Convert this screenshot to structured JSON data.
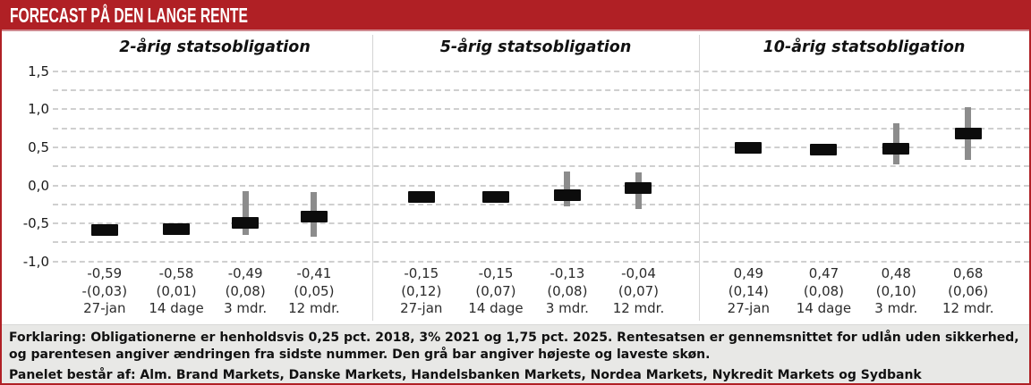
{
  "header": {
    "title": "FORECAST PÅ DEN LANGE RENTE"
  },
  "chart_data": {
    "type": "forecast-range-bar",
    "description": "Rate forecasts: black bar = panel average, gray bar = highest and lowest estimate",
    "y_axis": {
      "tick_labels": [
        "1,5",
        "1,0",
        "0,5",
        "0,0",
        "-0,5",
        "-1,0"
      ],
      "tick_values": [
        1.5,
        1.0,
        0.5,
        0.0,
        -0.5,
        -1.0
      ],
      "grid_step": 0.25,
      "ylim": [
        -1.0,
        1.5
      ],
      "grid": "dashed"
    },
    "panels": [
      {
        "title": "2-årig statsobligation",
        "points": [
          {
            "period": "27-jan",
            "value": -0.59,
            "value_text": "-0,59",
            "change_text": "-(0,03)",
            "range_high": null,
            "range_low": null
          },
          {
            "period": "14 dage",
            "value": -0.58,
            "value_text": "-0,58",
            "change_text": "(0,01)",
            "range_high": -0.5,
            "range_low": -0.63
          },
          {
            "period": "3 mdr.",
            "value": -0.49,
            "value_text": "-0,49",
            "change_text": "(0,08)",
            "range_high": -0.08,
            "range_low": -0.65
          },
          {
            "period": "12 mdr.",
            "value": -0.41,
            "value_text": "-0,41",
            "change_text": "(0,05)",
            "range_high": -0.09,
            "range_low": -0.67
          }
        ]
      },
      {
        "title": "5-årig statsobligation",
        "points": [
          {
            "period": "27-jan",
            "value": -0.15,
            "value_text": "-0,15",
            "change_text": "(0,12)",
            "range_high": null,
            "range_low": null
          },
          {
            "period": "14 dage",
            "value": -0.15,
            "value_text": "-0,15",
            "change_text": "(0,07)",
            "range_high": null,
            "range_low": null
          },
          {
            "period": "3 mdr.",
            "value": -0.13,
            "value_text": "-0,13",
            "change_text": "(0,08)",
            "range_high": 0.18,
            "range_low": -0.28
          },
          {
            "period": "12 mdr.",
            "value": -0.04,
            "value_text": "-0,04",
            "change_text": "(0,07)",
            "range_high": 0.17,
            "range_low": -0.31
          }
        ]
      },
      {
        "title": "10-årig statsobligation",
        "points": [
          {
            "period": "27-jan",
            "value": 0.49,
            "value_text": "0,49",
            "change_text": "(0,14)",
            "range_high": null,
            "range_low": null
          },
          {
            "period": "14 dage",
            "value": 0.47,
            "value_text": "0,47",
            "change_text": "(0,08)",
            "range_high": null,
            "range_low": null
          },
          {
            "period": "3 mdr.",
            "value": 0.48,
            "value_text": "0,48",
            "change_text": "(0,10)",
            "range_high": 0.82,
            "range_low": 0.27
          },
          {
            "period": "12 mdr.",
            "value": 0.68,
            "value_text": "0,68",
            "change_text": "(0,06)",
            "range_high": 1.03,
            "range_low": 0.33
          }
        ]
      }
    ]
  },
  "footer": {
    "explanation": "Forklaring: Obligationerne er henholdsvis 0,25 pct. 2018, 3% 2021 og 1,75 pct. 2025. Rentesatsen er gennemsnittet for udlån uden sikkerhed, og parentesen angiver ændringen fra sidste nummer. Den grå bar angiver højeste og laveste skøn.",
    "panel_note": "Panelet består af: Alm. Brand Markets, Danske Markets, Handelsbanken Markets, Nordea Markets, Nykredit Markets og Sydbank"
  },
  "colors": {
    "accent_red": "#b02025",
    "bar_black": "#0c0c0c",
    "range_gray": "#8c8c8c",
    "grid_gray": "#c7c7c7",
    "footer_bg": "#e8e8e6"
  }
}
